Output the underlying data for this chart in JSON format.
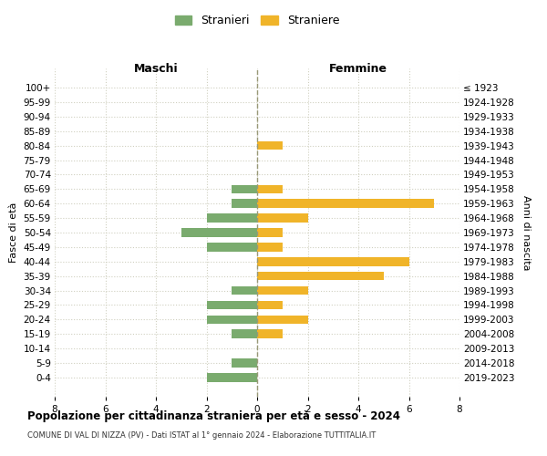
{
  "age_groups": [
    "100+",
    "95-99",
    "90-94",
    "85-89",
    "80-84",
    "75-79",
    "70-74",
    "65-69",
    "60-64",
    "55-59",
    "50-54",
    "45-49",
    "40-44",
    "35-39",
    "30-34",
    "25-29",
    "20-24",
    "15-19",
    "10-14",
    "5-9",
    "0-4"
  ],
  "birth_years": [
    "≤ 1923",
    "1924-1928",
    "1929-1933",
    "1934-1938",
    "1939-1943",
    "1944-1948",
    "1949-1953",
    "1954-1958",
    "1959-1963",
    "1964-1968",
    "1969-1973",
    "1974-1978",
    "1979-1983",
    "1984-1988",
    "1989-1993",
    "1994-1998",
    "1999-2003",
    "2004-2008",
    "2009-2013",
    "2014-2018",
    "2019-2023"
  ],
  "maschi": [
    0,
    0,
    0,
    0,
    0,
    0,
    0,
    1,
    1,
    2,
    3,
    2,
    0,
    0,
    1,
    2,
    2,
    1,
    0,
    1,
    2
  ],
  "femmine": [
    0,
    0,
    0,
    0,
    1,
    0,
    0,
    1,
    7,
    2,
    1,
    1,
    6,
    5,
    2,
    1,
    2,
    1,
    0,
    0,
    0
  ],
  "color_maschi": "#7aab6e",
  "color_femmine": "#f0b429",
  "background_color": "#ffffff",
  "grid_color": "#d0d0c0",
  "title": "Popolazione per cittadinanza straniera per età e sesso - 2024",
  "subtitle": "COMUNE DI VAL DI NIZZA (PV) - Dati ISTAT al 1° gennaio 2024 - Elaborazione TUTTITALIA.IT",
  "xlabel_left": "Maschi",
  "xlabel_right": "Femmine",
  "ylabel_left": "Fasce di età",
  "ylabel_right": "Anni di nascita",
  "legend_stranieri": "Stranieri",
  "legend_straniere": "Straniere",
  "xlim": 8
}
